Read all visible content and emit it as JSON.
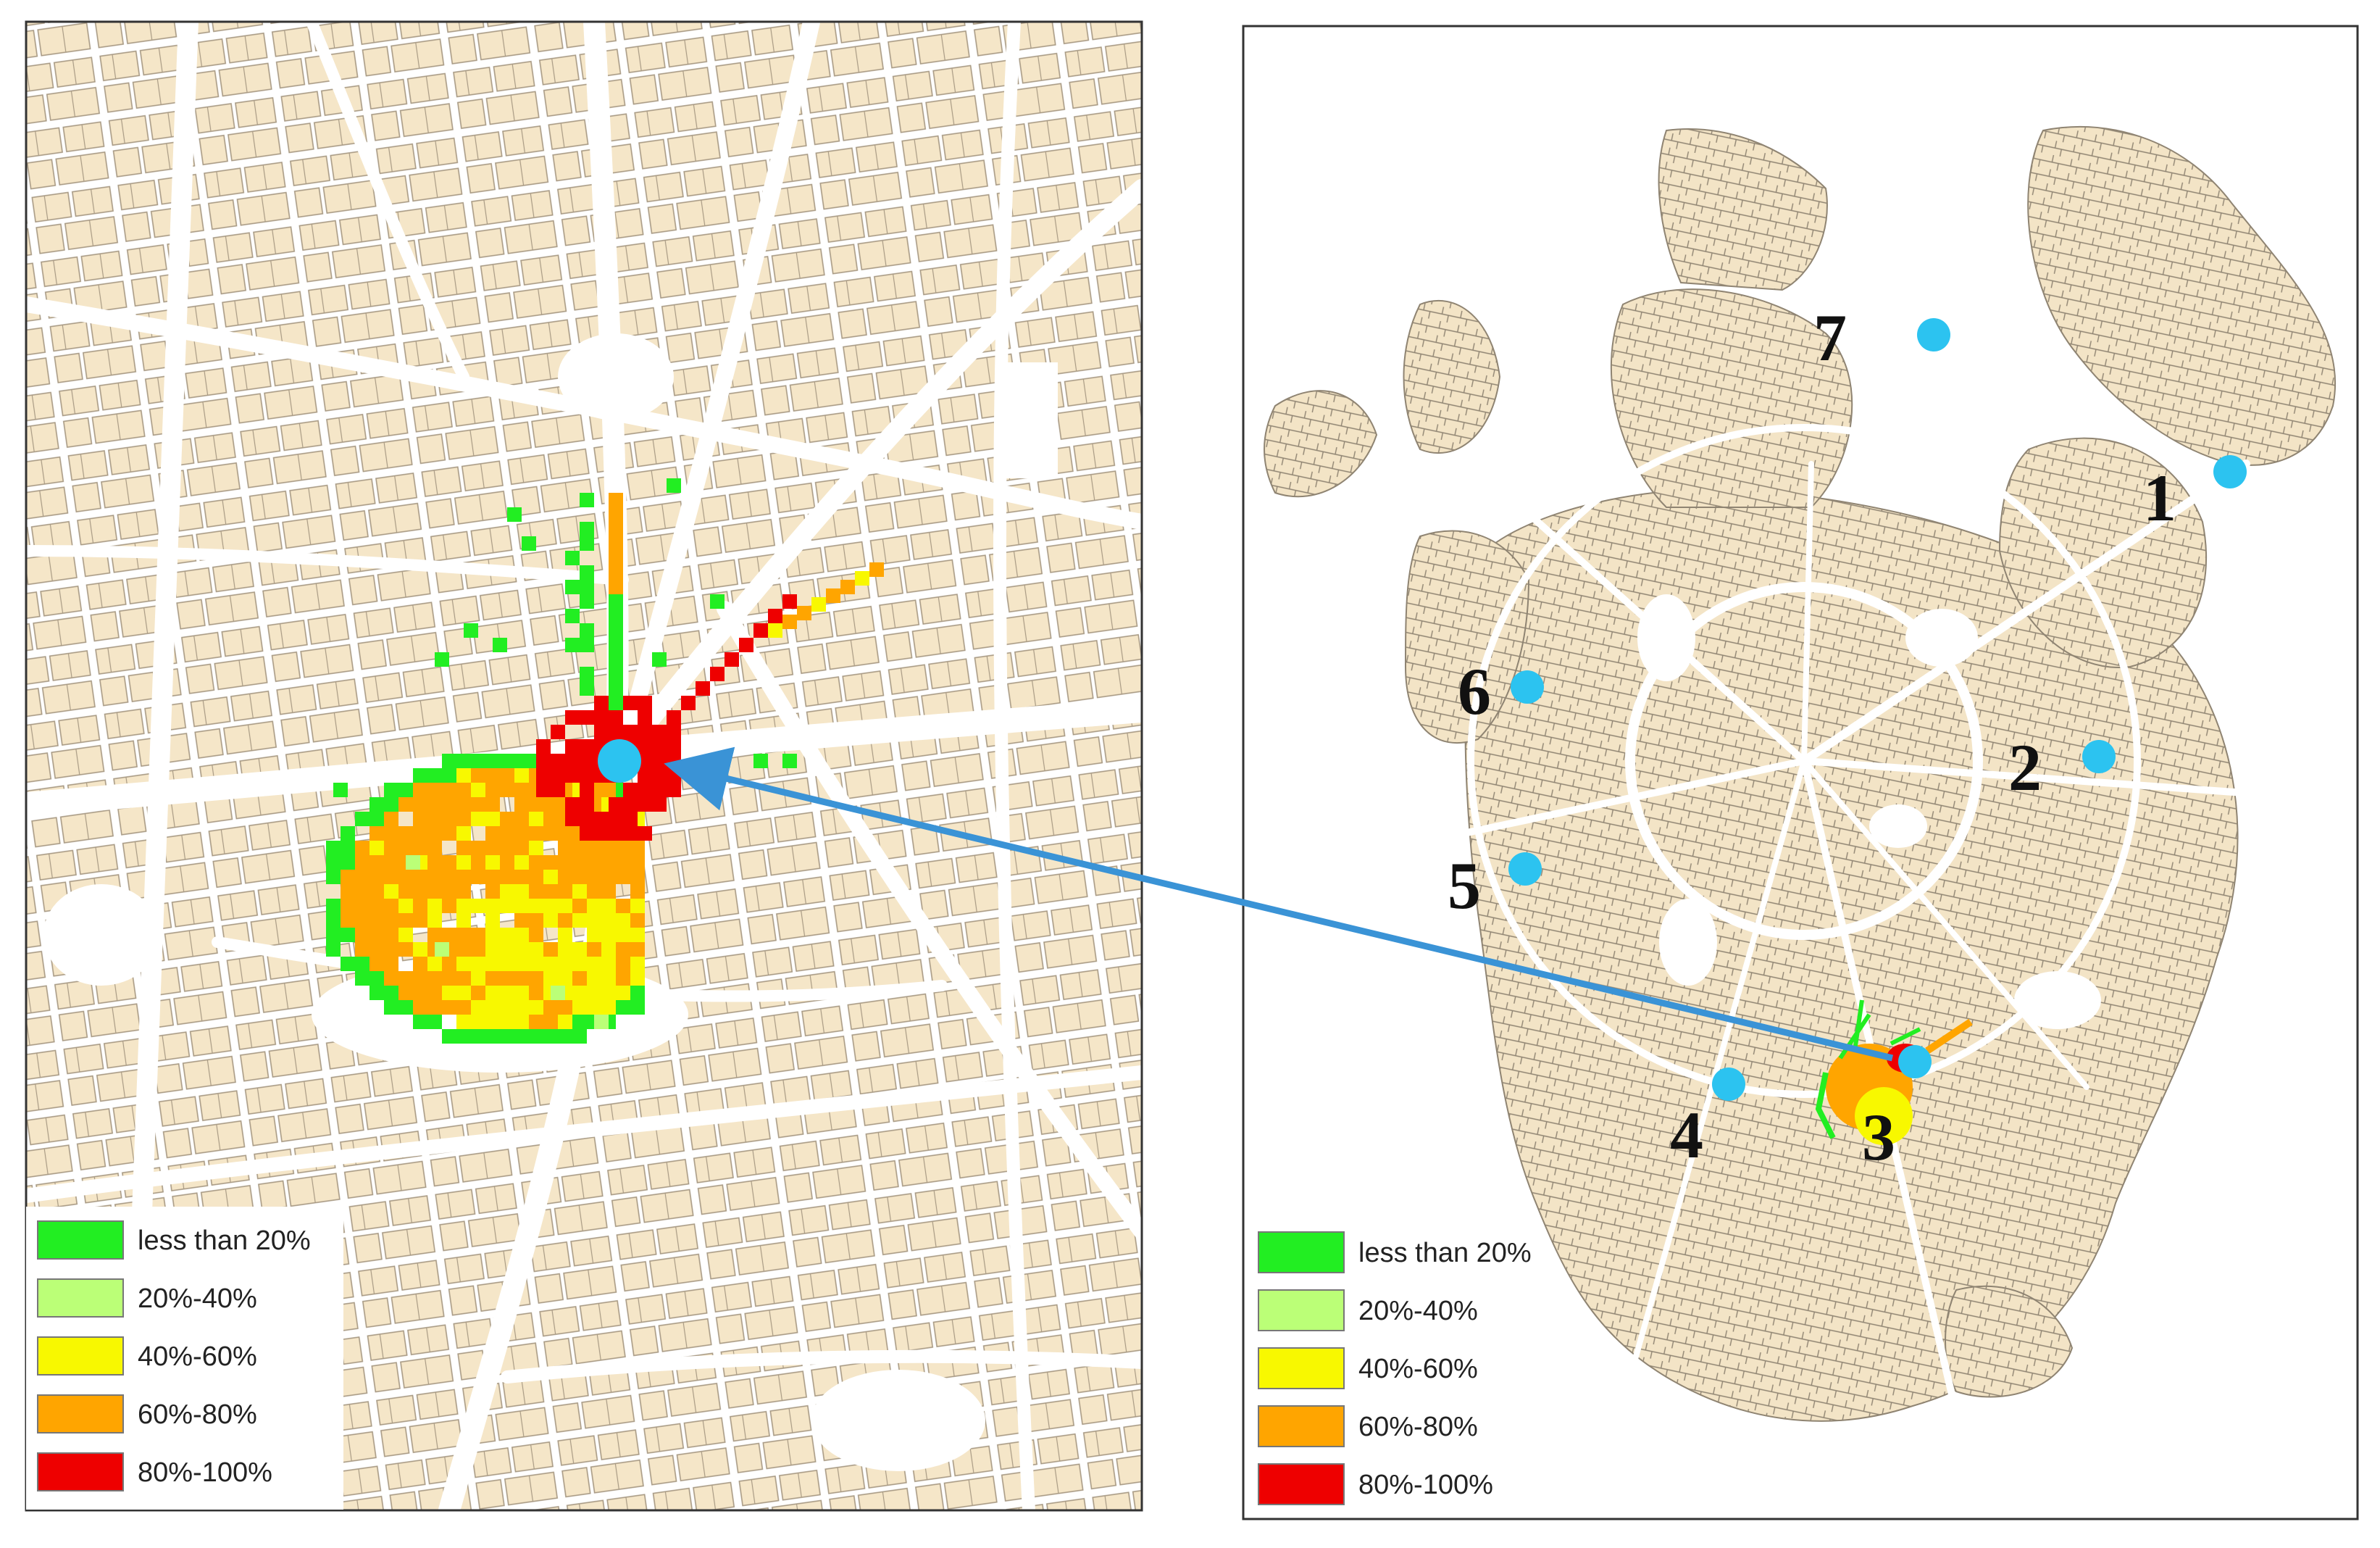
{
  "legend": {
    "items": [
      {
        "label": "less than 20%",
        "color": "#22ee22"
      },
      {
        "label": "20%-40%",
        "color": "#bbff77"
      },
      {
        "label": "40%-60%",
        "color": "#f8f800"
      },
      {
        "label": "60%-80%",
        "color": "#ffa500"
      },
      {
        "label": "80%-100%",
        "color": "#ee0000"
      }
    ]
  },
  "sites": [
    {
      "label": "1"
    },
    {
      "label": "2"
    },
    {
      "label": "3"
    },
    {
      "label": "4"
    },
    {
      "label": "5"
    },
    {
      "label": "6"
    },
    {
      "label": "7"
    }
  ],
  "colors": {
    "building": "#f5e6c8",
    "building_stroke": "#a89a84",
    "road": "#ffffff",
    "site_marker": "#2cc3f0",
    "arrow": "#3a93d6",
    "frame": "#333333"
  },
  "highlighted_site": "3"
}
